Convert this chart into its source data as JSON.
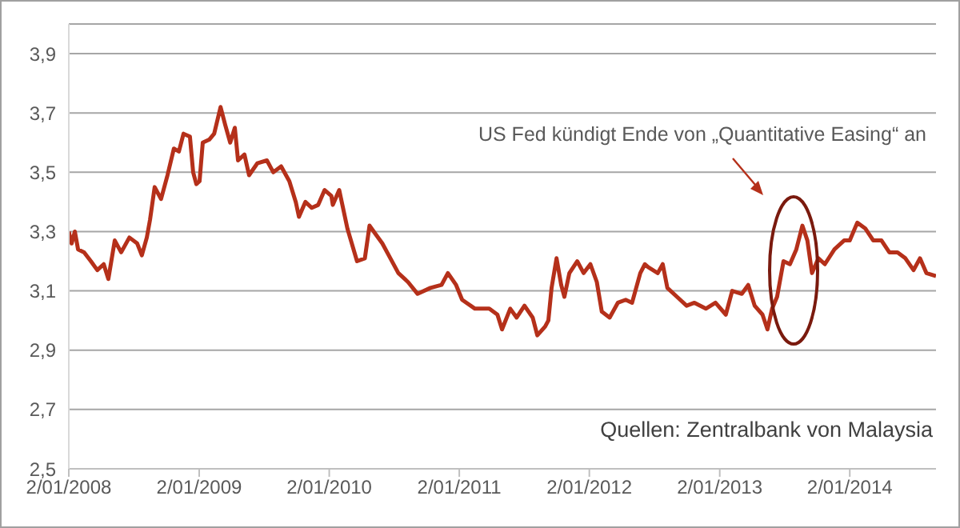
{
  "chart_data": {
    "type": "line",
    "x": [
      "2008-01-02",
      "2008-01-10",
      "2008-01-19",
      "2008-01-28",
      "2008-02-14",
      "2008-03-04",
      "2008-03-22",
      "2008-04-09",
      "2008-04-22",
      "2008-05-10",
      "2008-05-28",
      "2008-06-20",
      "2008-07-12",
      "2008-07-25",
      "2008-08-08",
      "2008-08-17",
      "2008-08-30",
      "2008-09-17",
      "2008-10-05",
      "2008-10-23",
      "2008-11-06",
      "2008-11-19",
      "2008-12-07",
      "2008-12-16",
      "2008-12-25",
      "2009-01-03",
      "2009-01-12",
      "2009-01-30",
      "2009-02-13",
      "2009-03-03",
      "2009-03-16",
      "2009-03-30",
      "2009-04-12",
      "2009-04-21",
      "2009-05-09",
      "2009-05-22",
      "2009-06-14",
      "2009-07-11",
      "2009-07-29",
      "2009-08-20",
      "2009-09-12",
      "2009-09-30",
      "2009-10-09",
      "2009-10-27",
      "2009-11-14",
      "2009-12-02",
      "2009-12-20",
      "2010-01-08",
      "2010-01-12",
      "2010-01-30",
      "2010-02-22",
      "2010-03-21",
      "2010-04-12",
      "2010-04-25",
      "2010-05-13",
      "2010-05-31",
      "2010-06-18",
      "2010-07-15",
      "2010-08-11",
      "2010-09-07",
      "2010-10-13",
      "2010-11-13",
      "2010-12-01",
      "2010-12-24",
      "2011-01-10",
      "2011-02-15",
      "2011-03-27",
      "2011-04-19",
      "2011-05-02",
      "2011-05-25",
      "2011-06-12",
      "2011-07-04",
      "2011-07-27",
      "2011-08-09",
      "2011-08-31",
      "2011-09-09",
      "2011-09-18",
      "2011-10-02",
      "2011-10-15",
      "2011-10-24",
      "2011-11-07",
      "2011-11-29",
      "2011-12-17",
      "2012-01-05",
      "2012-01-23",
      "2012-02-06",
      "2012-02-28",
      "2012-03-22",
      "2012-04-13",
      "2012-05-01",
      "2012-05-24",
      "2012-06-06",
      "2012-06-15",
      "2012-07-12",
      "2012-07-26",
      "2012-08-08",
      "2012-09-04",
      "2012-10-01",
      "2012-10-23",
      "2012-11-24",
      "2012-12-21",
      "2013-01-19",
      "2013-02-06",
      "2013-03-05",
      "2013-03-23",
      "2013-04-10",
      "2013-05-02",
      "2013-05-16",
      "2013-05-29",
      "2013-06-12",
      "2013-06-30",
      "2013-07-18",
      "2013-08-05",
      "2013-08-22",
      "2013-09-05",
      "2013-09-18",
      "2013-10-06",
      "2013-10-24",
      "2013-11-20",
      "2013-12-17",
      "2014-01-02",
      "2014-01-23",
      "2014-02-15",
      "2014-03-09",
      "2014-04-01",
      "2014-04-23",
      "2014-05-16",
      "2014-06-07",
      "2014-06-30",
      "2014-07-18",
      "2014-08-05",
      "2014-09-01"
    ],
    "series": [
      {
        "color": "#b5301a",
        "values": [
          3.3,
          3.26,
          3.3,
          3.24,
          3.23,
          3.2,
          3.17,
          3.19,
          3.14,
          3.27,
          3.23,
          3.28,
          3.26,
          3.22,
          3.28,
          3.34,
          3.45,
          3.41,
          3.49,
          3.58,
          3.57,
          3.63,
          3.62,
          3.5,
          3.46,
          3.47,
          3.6,
          3.61,
          3.63,
          3.72,
          3.66,
          3.6,
          3.65,
          3.54,
          3.56,
          3.49,
          3.53,
          3.54,
          3.5,
          3.52,
          3.47,
          3.4,
          3.35,
          3.4,
          3.38,
          3.39,
          3.44,
          3.42,
          3.39,
          3.44,
          3.31,
          3.2,
          3.21,
          3.32,
          3.29,
          3.26,
          3.22,
          3.16,
          3.13,
          3.09,
          3.11,
          3.12,
          3.16,
          3.12,
          3.07,
          3.04,
          3.04,
          3.02,
          2.97,
          3.04,
          3.01,
          3.05,
          3.01,
          2.95,
          2.98,
          3.0,
          3.11,
          3.21,
          3.12,
          3.08,
          3.16,
          3.2,
          3.16,
          3.19,
          3.13,
          3.03,
          3.01,
          3.06,
          3.07,
          3.06,
          3.16,
          3.19,
          3.18,
          3.16,
          3.19,
          3.11,
          3.08,
          3.05,
          3.06,
          3.04,
          3.06,
          3.02,
          3.1,
          3.09,
          3.12,
          3.05,
          3.02,
          2.97,
          3.04,
          3.08,
          3.2,
          3.19,
          3.24,
          3.32,
          3.27,
          3.16,
          3.21,
          3.19,
          3.24,
          3.27,
          3.27,
          3.33,
          3.31,
          3.27,
          3.27,
          3.23,
          3.23,
          3.21,
          3.17,
          3.21,
          3.16,
          3.15
        ]
      }
    ],
    "xlim": [
      "2008-01-02",
      "2014-09-01"
    ],
    "xticks": [
      {
        "value": "2008-01-02",
        "label": "2/01/2008"
      },
      {
        "value": "2009-01-02",
        "label": "2/01/2009"
      },
      {
        "value": "2010-01-02",
        "label": "2/01/2010"
      },
      {
        "value": "2011-01-02",
        "label": "2/01/2011"
      },
      {
        "value": "2012-01-02",
        "label": "2/01/2012"
      },
      {
        "value": "2013-01-02",
        "label": "2/01/2013"
      },
      {
        "value": "2014-01-02",
        "label": "2/01/2014"
      }
    ],
    "ylim": [
      2.5,
      4.0
    ],
    "yticks": [
      {
        "value": 2.5,
        "label": "2,5"
      },
      {
        "value": 2.7,
        "label": "2,7"
      },
      {
        "value": 2.9,
        "label": "2,9"
      },
      {
        "value": 3.1,
        "label": "3,1"
      },
      {
        "value": 3.3,
        "label": "3,3"
      },
      {
        "value": 3.5,
        "label": "3,5"
      },
      {
        "value": 3.7,
        "label": "3,7"
      },
      {
        "value": 3.9,
        "label": "3,9"
      }
    ],
    "grid": "y",
    "marker": "none",
    "line_style": "solid",
    "annotations": [
      "US Fed kündigt Ende von „Quantitative Easing“ an",
      "Quellen: Zentralbank von Malaysia"
    ]
  }
}
